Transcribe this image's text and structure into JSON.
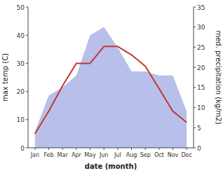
{
  "chart_data": {
    "type": "line",
    "categories": [
      "Jan",
      "Feb",
      "Mar",
      "Apr",
      "May",
      "Jun",
      "Jul",
      "Aug",
      "Sep",
      "Oct",
      "Nov",
      "Dec"
    ],
    "x_label": "date (month)",
    "y_label": "max temp (C)",
    "y2_label": "med. precipitation (kg/m2)",
    "series": [
      {
        "type": "area",
        "axis": "y2",
        "color": "#b0b8e8",
        "values": [
          4,
          13,
          15,
          18,
          28,
          30,
          25,
          19,
          19,
          18,
          18,
          9
        ]
      },
      {
        "type": "line",
        "color": "#c0392b",
        "values": [
          5,
          13,
          22,
          30,
          30,
          36,
          36,
          33,
          29,
          21,
          13,
          9
        ]
      }
    ],
    "ylim": [
      0,
      50
    ],
    "yticks": [
      0,
      10,
      20,
      30,
      40,
      50
    ],
    "y2lim": [
      0,
      35
    ],
    "y2ticks": [
      0,
      5,
      10,
      15,
      20,
      25,
      30,
      35
    ],
    "grid": false
  }
}
